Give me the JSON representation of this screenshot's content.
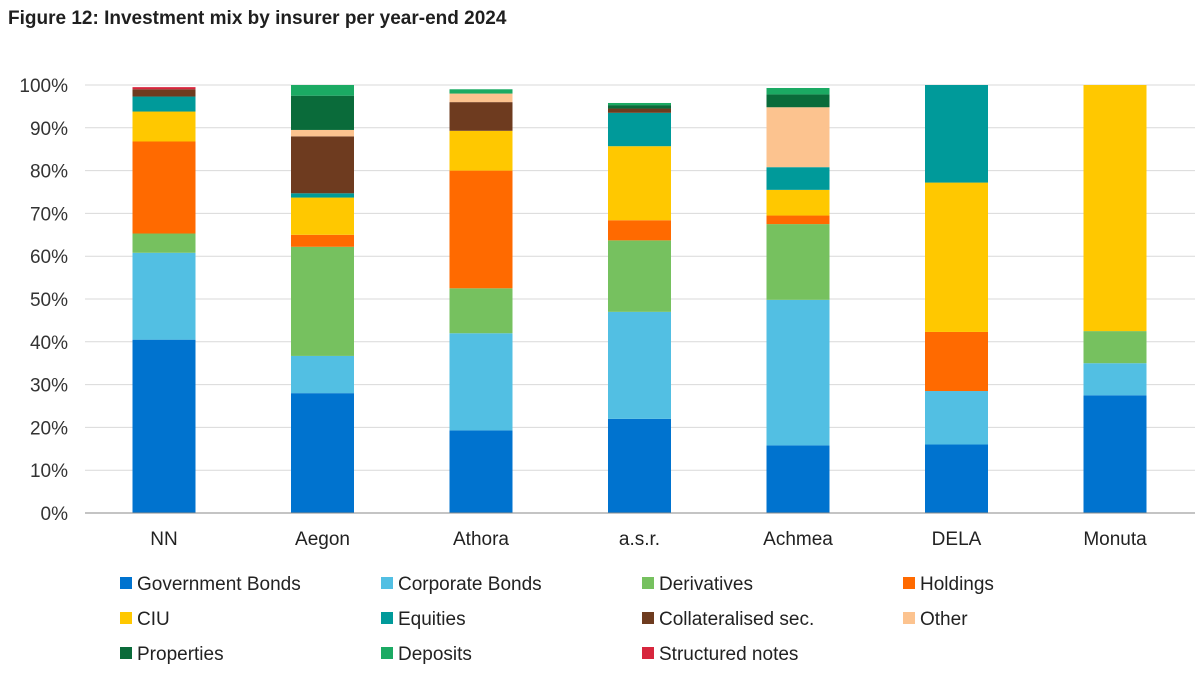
{
  "title": "Figure 12: Investment mix by insurer per year-end 2024",
  "chart_data": {
    "type": "bar",
    "stacked": true,
    "categories": [
      "NN",
      "Aegon",
      "Athora",
      "a.s.r.",
      "Achmea",
      "DELA",
      "Monuta"
    ],
    "ylim": [
      0,
      100
    ],
    "yticks": [
      "0%",
      "10%",
      "20%",
      "30%",
      "40%",
      "50%",
      "60%",
      "70%",
      "80%",
      "90%",
      "100%"
    ],
    "grid": true,
    "legend_position": "bottom",
    "series": [
      {
        "name": "Government Bonds",
        "color": "#0073CF",
        "values": [
          40.5,
          28.0,
          19.3,
          22.0,
          15.8,
          16.0,
          27.5
        ]
      },
      {
        "name": "Corporate Bonds",
        "color": "#52BFE3",
        "values": [
          20.3,
          8.7,
          22.7,
          25.0,
          34.0,
          12.5,
          7.5
        ]
      },
      {
        "name": "Derivatives",
        "color": "#76C15F",
        "values": [
          4.5,
          25.5,
          10.5,
          16.7,
          17.7,
          0,
          7.5
        ]
      },
      {
        "name": "Holdings",
        "color": "#FF6A00",
        "values": [
          21.5,
          2.8,
          27.5,
          4.7,
          2.0,
          13.8,
          0
        ]
      },
      {
        "name": "CIU",
        "color": "#FFC800",
        "values": [
          7.0,
          8.7,
          9.3,
          17.3,
          6.0,
          34.9,
          57.5
        ]
      },
      {
        "name": "Equities",
        "color": "#009A9A",
        "values": [
          3.5,
          1.0,
          0,
          7.8,
          5.3,
          22.8,
          0
        ]
      },
      {
        "name": "Collateralised sec.",
        "color": "#6E3B1F",
        "values": [
          1.7,
          13.3,
          6.7,
          1.0,
          0,
          0,
          0
        ]
      },
      {
        "name": "Other",
        "color": "#FCC38F",
        "values": [
          0,
          1.5,
          2.0,
          0,
          14.0,
          0,
          0
        ]
      },
      {
        "name": "Properties",
        "color": "#0A6B3A",
        "values": [
          0,
          8.0,
          0,
          0.8,
          3.0,
          0,
          0
        ]
      },
      {
        "name": "Deposits",
        "color": "#1BAA63",
        "values": [
          0,
          2.5,
          1.0,
          0.5,
          1.5,
          0,
          0
        ]
      },
      {
        "name": "Structured notes",
        "color": "#D7263D",
        "values": [
          0.5,
          0,
          0,
          0,
          0,
          0,
          0
        ]
      }
    ]
  }
}
